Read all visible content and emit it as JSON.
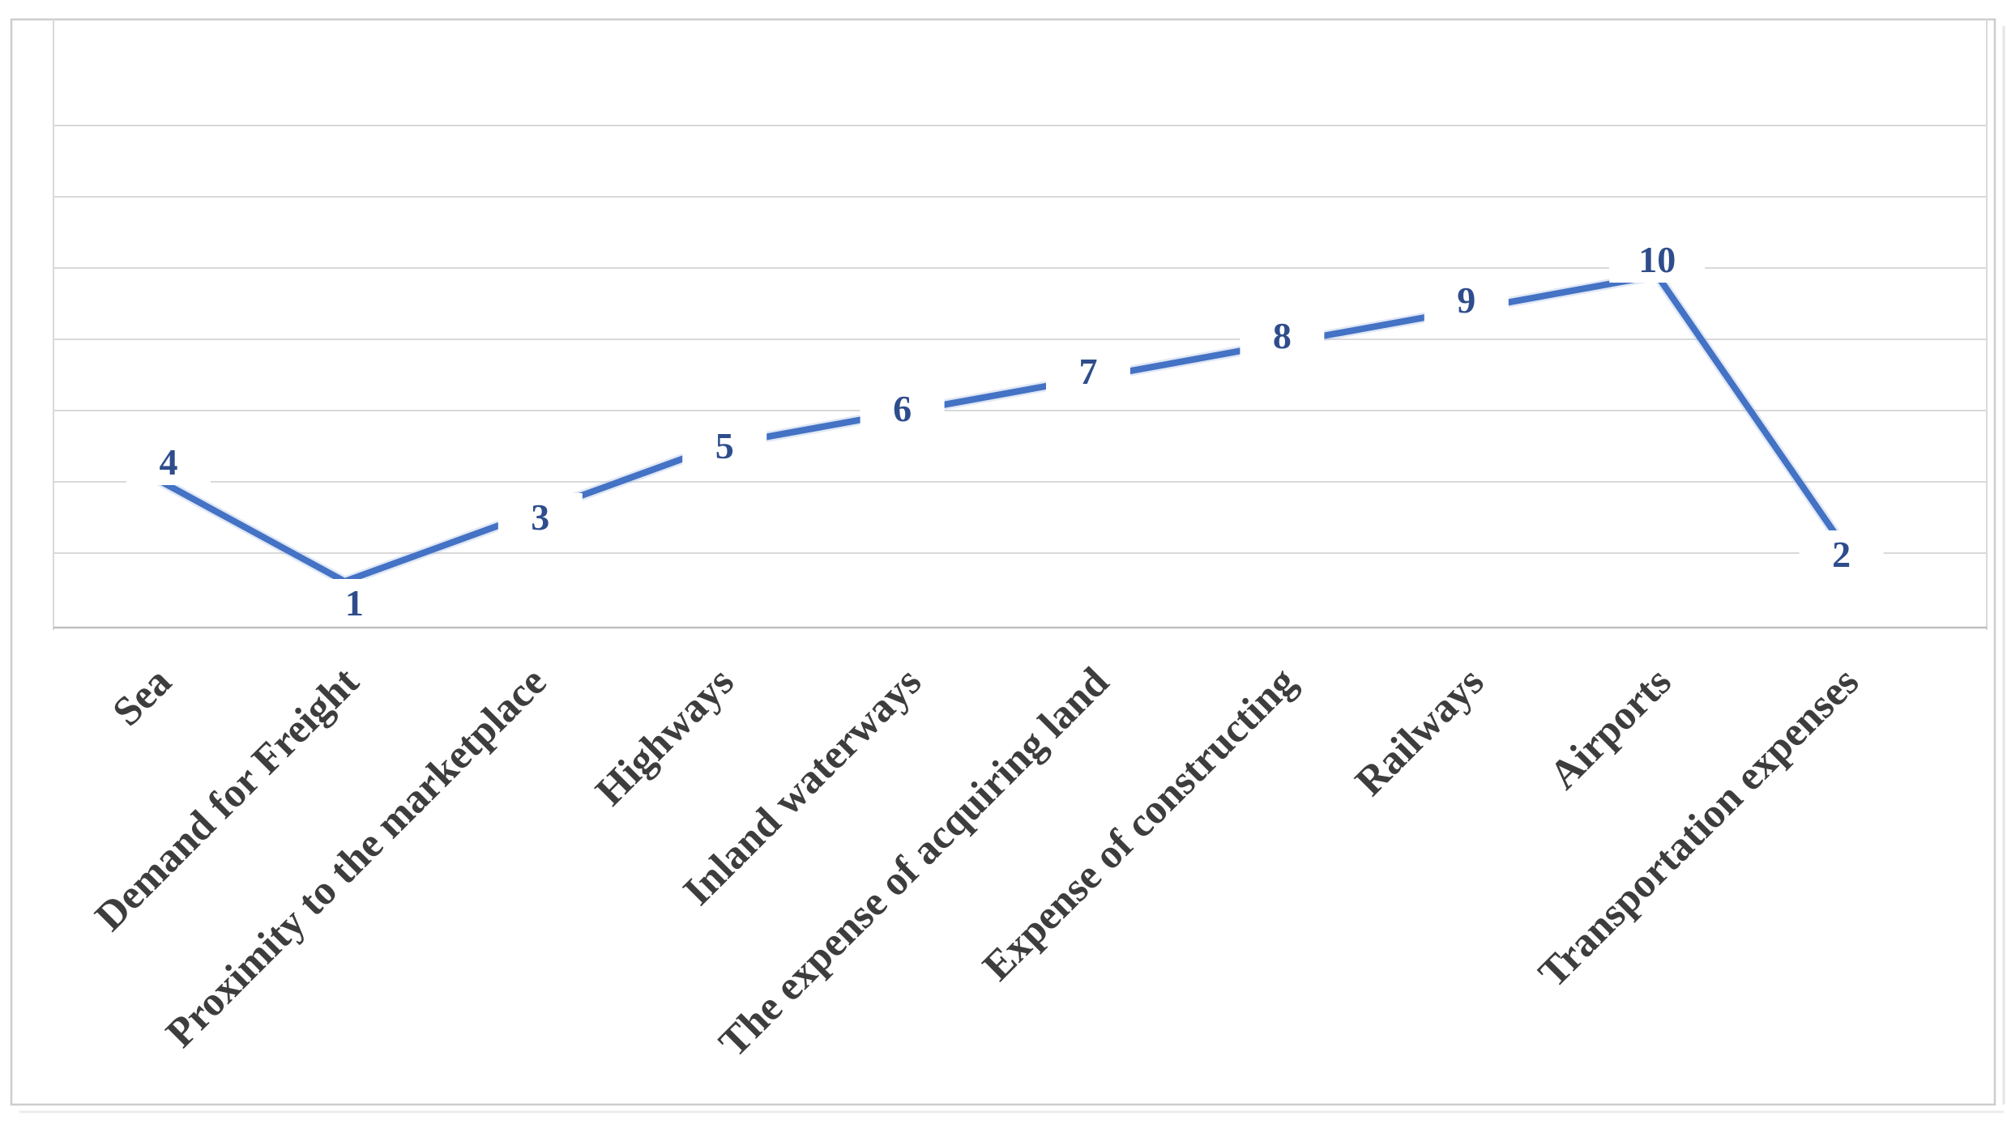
{
  "chart_data": {
    "type": "line",
    "title": "",
    "xlabel": "",
    "ylabel": "",
    "categories": [
      "Sea",
      "Demand for Freight",
      "Proximity to the marketplace",
      "Highways",
      "Inland waterways",
      "The expense of acquiring land",
      "Expense of constructing",
      "Railways",
      "Airports",
      "Transportation expenses"
    ],
    "values": [
      4,
      1,
      3,
      5,
      6,
      7,
      8,
      9,
      10,
      2
    ],
    "data_labels": [
      "4",
      "1",
      "3",
      "5",
      "6",
      "7",
      "8",
      "9",
      "10",
      "2"
    ],
    "legend_position": "none",
    "y_axis_tick_labels_visible": false,
    "gridlines": "horizontal",
    "category_label_rotation_deg": -45
  },
  "colors": {
    "series_line": "#4472C4",
    "series_line_halo": "#A7BCE4",
    "data_label": "#2F4D8C",
    "category_label": "#3D3D3D",
    "gridline": "#D9D9D9",
    "axis_line": "#BFBFBF",
    "chart_border": "#CDCDCD",
    "plot_edge": "#D9D9D9",
    "background": "#FFFFFF"
  }
}
